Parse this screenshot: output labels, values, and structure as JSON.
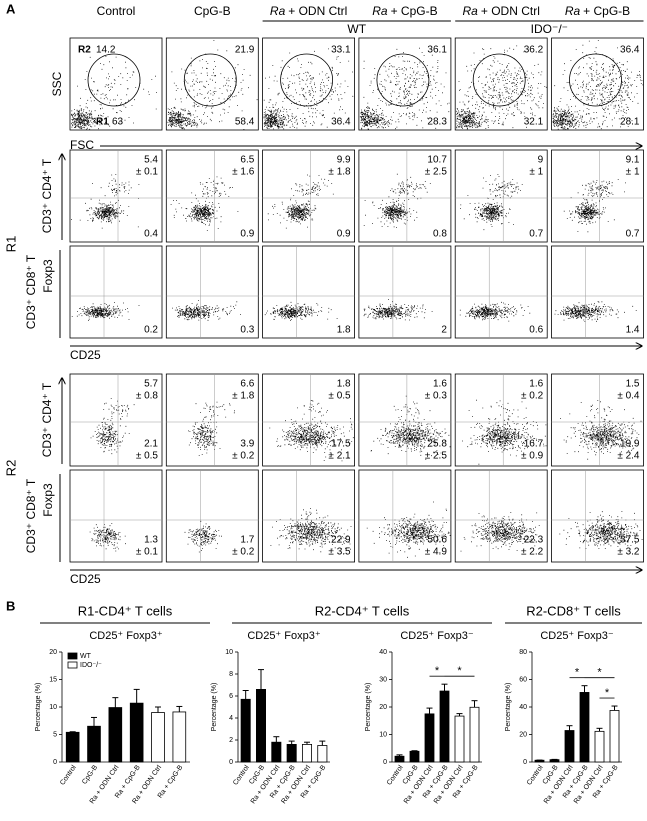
{
  "panel_a": {
    "label": "A",
    "columns": [
      {
        "text": "Control"
      },
      {
        "text": "CpG-B"
      },
      {
        "italic": "Ra",
        "text": "+ ODN Ctrl"
      },
      {
        "italic": "Ra",
        "text": "+ CpG-B"
      },
      {
        "italic": "Ra",
        "text": "+ ODN Ctrl"
      },
      {
        "italic": "Ra",
        "text": "+ CpG-B"
      }
    ],
    "groups": [
      "WT",
      "IDO⁻/⁻"
    ],
    "scatter_row": {
      "y_label": "SSC",
      "x_label": "FSC",
      "gate_labels": [
        "R2",
        "R1"
      ],
      "r2": [
        "14.2",
        "21.9",
        "33.1",
        "36.1",
        "36.2",
        "36.4"
      ],
      "r1": [
        "63",
        "58.4",
        "36.4",
        "28.3",
        "32.1",
        "28.1"
      ]
    },
    "r1": {
      "label": "R1",
      "cd4_label": "CD3⁺ CD4⁺ T",
      "cd8_label": "CD3⁺ CD8⁺ T",
      "y_label": "Foxp3",
      "x_label": "CD25",
      "cd4_upper": [
        [
          "5.4",
          "± 0.1"
        ],
        [
          "6.5",
          "± 1.6"
        ],
        [
          "9.9",
          "± 1.8"
        ],
        [
          "10.7",
          "± 2.5"
        ],
        [
          "9",
          "± 1"
        ],
        [
          "9.1",
          "± 1"
        ]
      ],
      "cd4_lower": [
        "0.4",
        "0.9",
        "0.9",
        "0.8",
        "0.7",
        "0.7"
      ],
      "cd8_lower": [
        "0.2",
        "0.3",
        "1.8",
        "2",
        "0.6",
        "1.4"
      ]
    },
    "r2": {
      "label": "R2",
      "cd4_label": "CD3⁺ CD4⁺ T",
      "cd8_label": "CD3⁺ CD8⁺ T",
      "y_label": "Foxp3",
      "x_label": "CD25",
      "cd4_upper": [
        [
          "5.7",
          "± 0.8"
        ],
        [
          "6.6",
          "± 1.8"
        ],
        [
          "1.8",
          "± 0.5"
        ],
        [
          "1.6",
          "± 0.3"
        ],
        [
          "1.6",
          "± 0.2"
        ],
        [
          "1.5",
          "± 0.4"
        ]
      ],
      "cd4_lower": [
        [
          "2.1",
          "± 0.5"
        ],
        [
          "3.9",
          "± 0.2"
        ],
        [
          "17.5",
          "± 2.1"
        ],
        [
          "25.8",
          "± 2.5"
        ],
        [
          "16.7",
          "± 0.9"
        ],
        [
          "19.9",
          "± 2.4"
        ]
      ],
      "cd8_lower": [
        [
          "1.3",
          "± 0.1"
        ],
        [
          "1.7",
          "± 0.2"
        ],
        [
          "22.9",
          "± 3.5"
        ],
        [
          "50.6",
          "± 4.9"
        ],
        [
          "22.3",
          "± 2.2"
        ],
        [
          "37.5",
          "± 3.2"
        ]
      ]
    }
  },
  "panel_b": {
    "label": "B",
    "groups": [
      "R1-CD4⁺ T cells",
      "R2-CD4⁺ T cells",
      "R2-CD8⁺ T cells"
    ]
  },
  "chart_data": [
    {
      "type": "bar",
      "subtitle": "CD25⁺ Foxp3⁺",
      "y_label": "Percentage (%)",
      "categories": [
        "Control",
        "CpG-B",
        "Ra + ODN Ctrl",
        "Ra + CpG-B",
        "Ra + ODN Ctrl",
        "Ra + CpG-B"
      ],
      "values": [
        5.4,
        6.5,
        9.9,
        10.7,
        9,
        9.1
      ],
      "errors": [
        0.1,
        1.6,
        1.8,
        2.5,
        1,
        1
      ],
      "bar_colors": [
        "#000000",
        "#000000",
        "#000000",
        "#000000",
        "#ffffff",
        "#ffffff"
      ],
      "ylim": [
        0,
        20
      ],
      "yticks": [
        0,
        5,
        10,
        15,
        20
      ],
      "legend": [
        {
          "name": "WT",
          "color": "#000000"
        },
        {
          "name": "IDO⁻/⁻",
          "color": "#ffffff"
        }
      ]
    },
    {
      "type": "bar",
      "subtitle": "CD25⁺ Foxp3⁺",
      "y_label": "Percentage (%)",
      "categories": [
        "Control",
        "CpG-B",
        "Ra + ODN Ctrl",
        "Ra + CpG-B",
        "Ra + ODN Ctrl",
        "Ra + CpG-B"
      ],
      "values": [
        5.7,
        6.6,
        1.8,
        1.6,
        1.6,
        1.5
      ],
      "errors": [
        0.8,
        1.8,
        0.5,
        0.3,
        0.2,
        0.4
      ],
      "bar_colors": [
        "#000000",
        "#000000",
        "#000000",
        "#000000",
        "#ffffff",
        "#ffffff"
      ],
      "ylim": [
        0,
        10
      ],
      "yticks": [
        0,
        2,
        4,
        6,
        8,
        10
      ]
    },
    {
      "type": "bar",
      "subtitle": "CD25⁺ Foxp3⁻",
      "y_label": "Percentage (%)",
      "categories": [
        "Control",
        "CpG-B",
        "Ra + ODN Ctrl",
        "Ra + CpG-B",
        "Ra + ODN Ctrl",
        "Ra + CpG-B"
      ],
      "values": [
        2.1,
        3.9,
        17.5,
        25.8,
        16.7,
        19.9
      ],
      "errors": [
        0.5,
        0.2,
        2.1,
        2.5,
        0.9,
        2.4
      ],
      "bar_colors": [
        "#000000",
        "#000000",
        "#000000",
        "#000000",
        "#ffffff",
        "#ffffff"
      ],
      "ylim": [
        0,
        40
      ],
      "yticks": [
        0,
        10,
        20,
        30,
        40
      ],
      "significance": [
        {
          "from": 2,
          "to": 3,
          "label": "*"
        },
        {
          "from": 3,
          "to": 5,
          "label": "*"
        }
      ]
    },
    {
      "type": "bar",
      "subtitle": "CD25⁺ Foxp3⁻",
      "y_label": "Percentage (%)",
      "categories": [
        "Control",
        "CpG-B",
        "Ra + ODN Ctrl",
        "Ra + CpG-B",
        "Ra + ODN Ctrl",
        "Ra + CpG-B"
      ],
      "values": [
        1.3,
        1.7,
        22.9,
        50.6,
        22.3,
        37.5
      ],
      "errors": [
        0.1,
        0.2,
        3.5,
        4.9,
        2.2,
        3.2
      ],
      "bar_colors": [
        "#000000",
        "#000000",
        "#000000",
        "#000000",
        "#ffffff",
        "#ffffff"
      ],
      "ylim": [
        0,
        80
      ],
      "yticks": [
        0,
        20,
        40,
        60,
        80
      ],
      "significance": [
        {
          "from": 2,
          "to": 3,
          "label": "*"
        },
        {
          "from": 4,
          "to": 5,
          "label": "*"
        },
        {
          "from": 3,
          "to": 5,
          "label": "*"
        }
      ]
    }
  ]
}
